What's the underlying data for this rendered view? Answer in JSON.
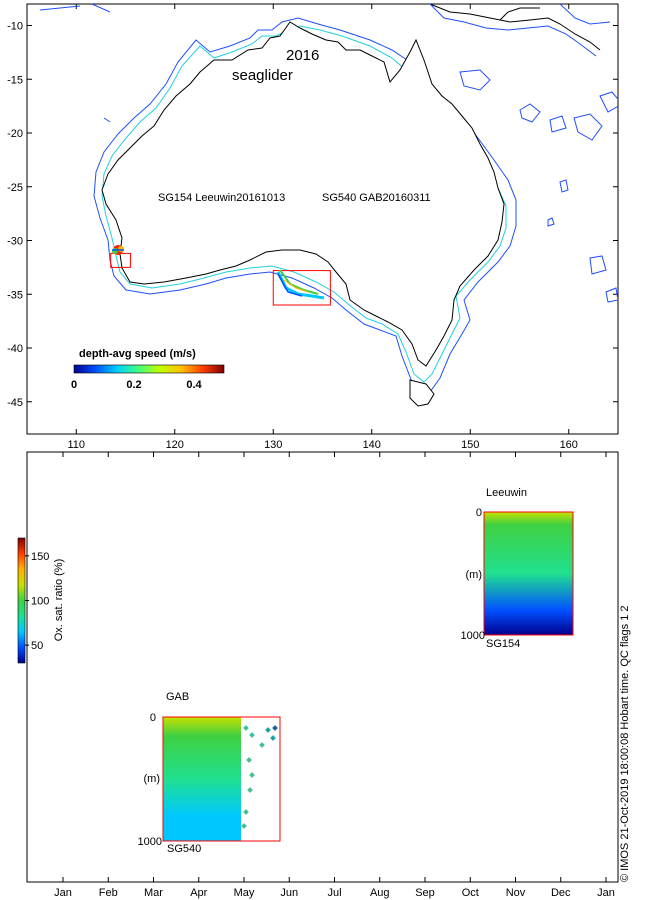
{
  "chart_data": [
    {
      "type": "map",
      "title": "2016",
      "subtitle": "seaglider",
      "xlim": [
        105,
        165
      ],
      "ylim": [
        -48,
        -8
      ],
      "x_ticks": [
        110,
        120,
        130,
        140,
        150,
        160
      ],
      "y_ticks": [
        -10,
        -15,
        -20,
        -25,
        -30,
        -35,
        -40,
        -45
      ],
      "deployments": [
        {
          "label": "SG154 Leeuwin20161013",
          "lon_range": [
            113.5,
            115.5
          ],
          "lat_range": [
            -32.5,
            -31.2
          ]
        },
        {
          "label": "SG540 GAB20160311",
          "lon_range": [
            130,
            135.8
          ],
          "lat_range": [
            -36,
            -32.8
          ]
        }
      ],
      "colorbar": {
        "title": "depth-avg speed (m/s)",
        "ticks": [
          0,
          0.2,
          0.4
        ],
        "range": [
          0,
          0.5
        ],
        "colors": [
          "#00008f",
          "#0050ff",
          "#00d0ff",
          "#40ff80",
          "#c0ff00",
          "#ffc000",
          "#ff4000",
          "#800000"
        ]
      }
    },
    {
      "type": "heatmap",
      "x_ticks": [
        "Jan",
        "Feb",
        "Mar",
        "Apr",
        "May",
        "Jun",
        "Jul",
        "Aug",
        "Sep",
        "Oct",
        "Nov",
        "Dec",
        "Jan"
      ],
      "colorbar": {
        "title": "Ox. sat. ratio (%)",
        "ticks": [
          50,
          100,
          150
        ],
        "range": [
          30,
          170
        ],
        "colors": [
          "#00008f",
          "#0050ff",
          "#00c8ff",
          "#20e090",
          "#40d040",
          "#c8e000",
          "#ffb000",
          "#ff4000",
          "#800000"
        ]
      },
      "panels": [
        {
          "name": "GAB",
          "glider": "SG540",
          "depth_unit": "(m)",
          "depth_ticks": [
            0,
            1000
          ],
          "time_range": [
            "Mar 11",
            "May 28"
          ],
          "data_time_range": [
            "Mar 11",
            "May 1"
          ],
          "profile": [
            {
              "depth": 0,
              "value": 115
            },
            {
              "depth": 150,
              "value": 105
            },
            {
              "depth": 500,
              "value": 90
            },
            {
              "depth": 800,
              "value": 70
            },
            {
              "depth": 1000,
              "value": 60
            }
          ]
        },
        {
          "name": "Leeuwin",
          "glider": "SG154",
          "depth_unit": "(m)",
          "depth_ticks": [
            0,
            1000
          ],
          "time_range": [
            "Oct 13",
            "Dec 3"
          ],
          "data_time_range": [
            "Oct 13",
            "Dec 3"
          ],
          "profile": [
            {
              "depth": 0,
              "value": 110
            },
            {
              "depth": 100,
              "value": 100
            },
            {
              "depth": 500,
              "value": 85
            },
            {
              "depth": 800,
              "value": 55
            },
            {
              "depth": 1000,
              "value": 35
            }
          ]
        }
      ]
    }
  ],
  "footer": {
    "credit": "© IMOS 21-Oct-2019 18:00:08 Hobart time. QC flags 1  2"
  }
}
